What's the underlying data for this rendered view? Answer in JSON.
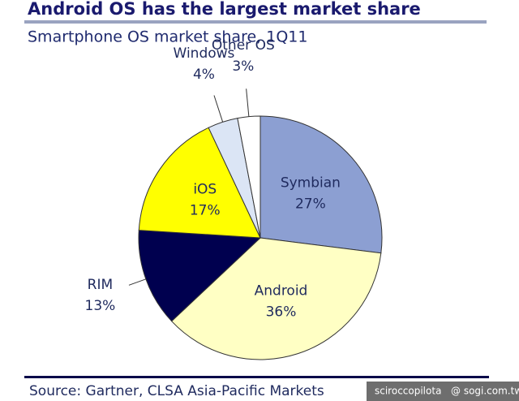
{
  "chart_data": {
    "type": "pie",
    "title": "Android OS has the largest market share",
    "subtitle": "Smartphone OS market share, 1Q11",
    "categories": [
      "Symbian",
      "Android",
      "RIM",
      "iOS",
      "Windows",
      "Other OS"
    ],
    "values": [
      27,
      36,
      13,
      17,
      4,
      3
    ],
    "value_labels": [
      "27%",
      "36%",
      "13%",
      "17%",
      "4%",
      "3%"
    ],
    "colors": [
      "#8c9fd2",
      "#ffffc4",
      "#00004f",
      "#ffff00",
      "#dbe5f5",
      "#ffffff"
    ],
    "source": "Source: Gartner, CLSA Asia-Pacific Markets",
    "watermark": [
      "sciroccopilota",
      "@ sogi.com.tw"
    ]
  }
}
